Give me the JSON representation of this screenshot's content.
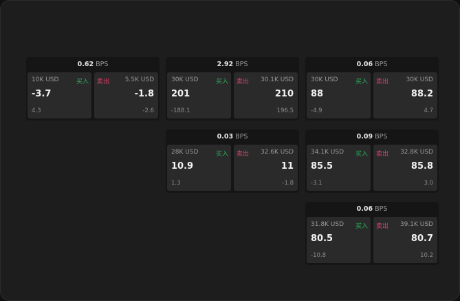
{
  "labels": {
    "unit": "BPS",
    "buy": "买入",
    "sell": "卖出"
  },
  "colors": {
    "buy": "#2fae5f",
    "sell": "#d8426a"
  },
  "widgets": [
    {
      "spread": "0.62",
      "buy": {
        "qty": "10K USD",
        "price": "-3.7",
        "change": "4.3"
      },
      "sell": {
        "qty": "5.5K USD",
        "price": "-1.8",
        "change": "-2.6"
      }
    },
    {
      "spread": "2.92",
      "buy": {
        "qty": "30K USD",
        "price": "201",
        "change": "-188.1"
      },
      "sell": {
        "qty": "30.1K USD",
        "price": "210",
        "change": "196.5"
      }
    },
    {
      "spread": "0.06",
      "buy": {
        "qty": "30K USD",
        "price": "88",
        "change": "-4.9"
      },
      "sell": {
        "qty": "30K USD",
        "price": "88.2",
        "change": "4.7"
      }
    },
    {
      "spread": "0.03",
      "buy": {
        "qty": "28K USD",
        "price": "10.9",
        "change": "1.3"
      },
      "sell": {
        "qty": "32.6K USD",
        "price": "11",
        "change": "-1.8"
      }
    },
    {
      "spread": "0.09",
      "buy": {
        "qty": "34.1K USD",
        "price": "85.5",
        "change": "-3.1"
      },
      "sell": {
        "qty": "32.8K USD",
        "price": "85.8",
        "change": "3.0"
      }
    },
    {
      "spread": "0.06",
      "buy": {
        "qty": "31.8K USD",
        "price": "80.5",
        "change": "-10.8"
      },
      "sell": {
        "qty": "39.1K USD",
        "price": "80.7",
        "change": "10.2"
      }
    }
  ]
}
